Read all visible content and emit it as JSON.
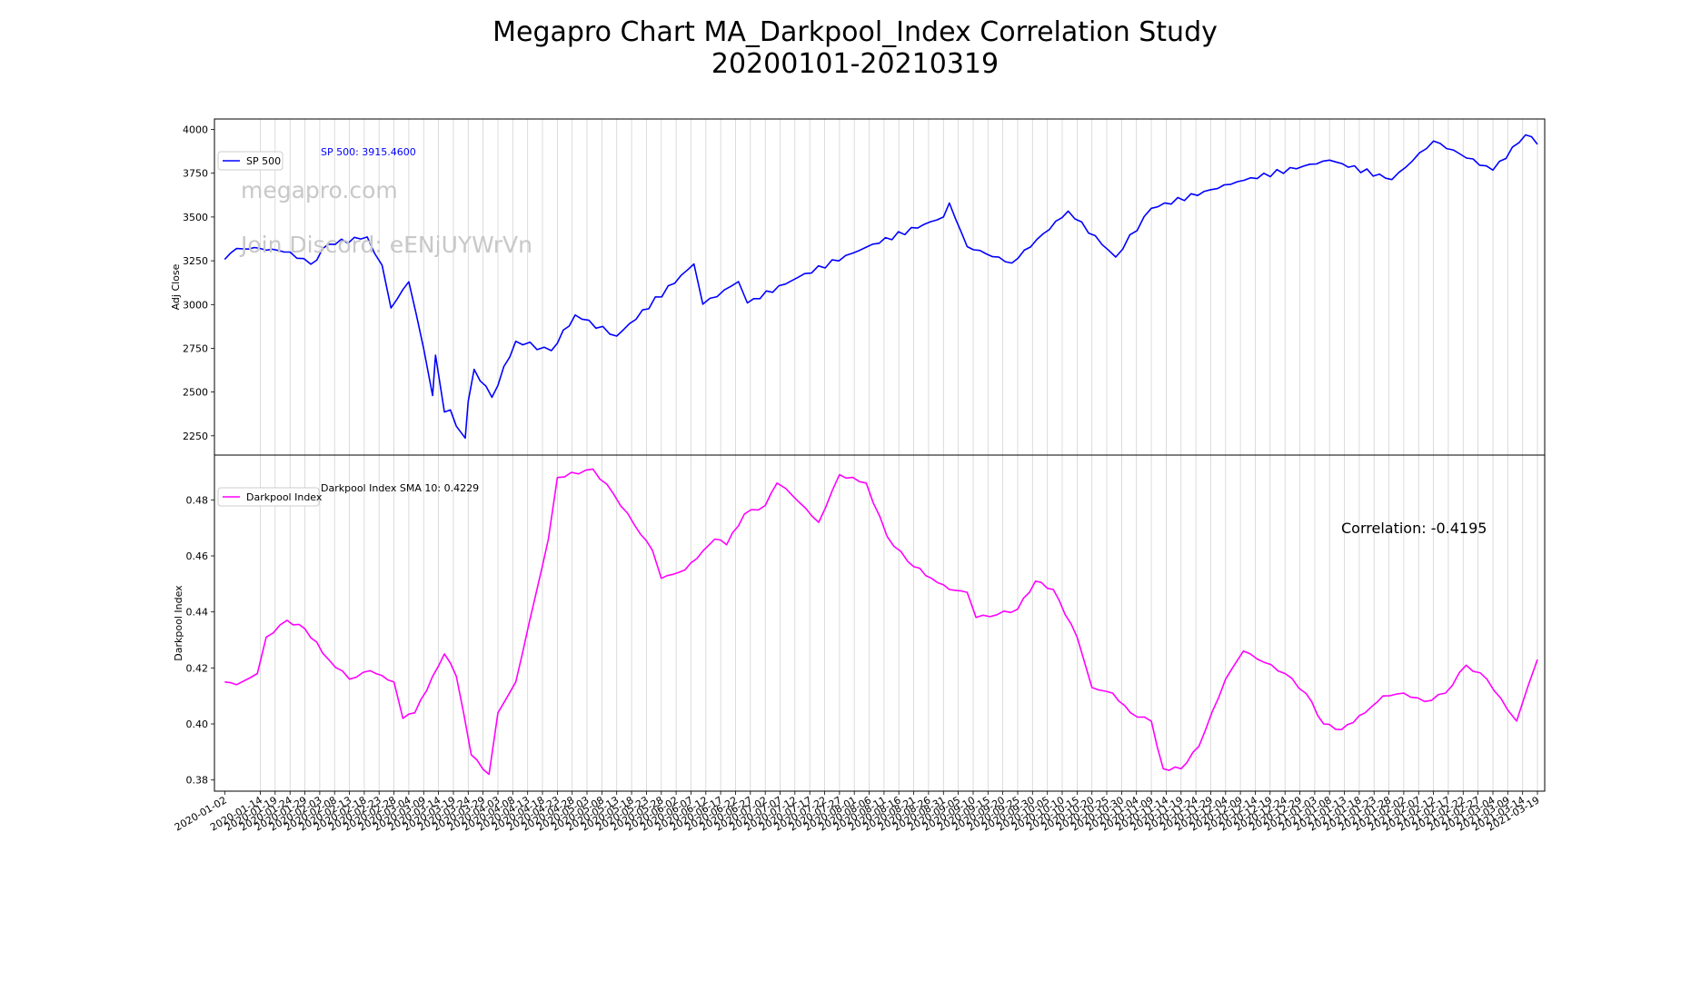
{
  "title_line1": "Megapro Chart MA_Darkpool_Index Correlation Study",
  "title_line2": "20200101-20210319",
  "watermark1": "megapro.com",
  "watermark2": "Join Discord: eENjUYWrVn",
  "colors": {
    "sp500": "#0000ff",
    "darkpool": "#ff00ff",
    "watermark": "#c8c8c8",
    "grid": "#d3d3d3"
  },
  "chart_data": [
    {
      "type": "line",
      "ylabel": "Adj Close",
      "ylim": [
        2140,
        4060
      ],
      "yticks": [
        2250,
        2500,
        2750,
        3000,
        3250,
        3500,
        3750,
        4000
      ],
      "yticklabels": [
        "2250",
        "2500",
        "2750",
        "3000",
        "3250",
        "3500",
        "3750",
        "4000"
      ],
      "legend": "upper-left",
      "annotation": "SP 500: 3915.4600",
      "series": [
        {
          "name": "SP 500",
          "color": "#0000ff",
          "points": [
            [
              "2020-01-02",
              3258
            ],
            [
              "2020-01-06",
              3320
            ],
            [
              "2020-01-14",
              3320
            ],
            [
              "2020-01-24",
              3300
            ],
            [
              "2020-01-31",
              3230
            ],
            [
              "2020-02-06",
              3345
            ],
            [
              "2020-02-19",
              3386
            ],
            [
              "2020-02-24",
              3225
            ],
            [
              "2020-02-27",
              2980
            ],
            [
              "2020-03-04",
              3130
            ],
            [
              "2020-03-09",
              2747
            ],
            [
              "2020-03-12",
              2480
            ],
            [
              "2020-03-13",
              2711
            ],
            [
              "2020-03-16",
              2386
            ],
            [
              "2020-03-18",
              2398
            ],
            [
              "2020-03-20",
              2305
            ],
            [
              "2020-03-23",
              2237
            ],
            [
              "2020-03-24",
              2447
            ],
            [
              "2020-03-26",
              2630
            ],
            [
              "2020-04-01",
              2470
            ],
            [
              "2020-04-09",
              2790
            ],
            [
              "2020-04-21",
              2737
            ],
            [
              "2020-04-29",
              2940
            ],
            [
              "2020-05-13",
              2820
            ],
            [
              "2020-06-08",
              3232
            ],
            [
              "2020-06-11",
              3002
            ],
            [
              "2020-06-23",
              3131
            ],
            [
              "2020-06-26",
              3009
            ],
            [
              "2020-07-13",
              3155
            ],
            [
              "2020-08-05",
              3328
            ],
            [
              "2020-08-31",
              3500
            ],
            [
              "2020-09-02",
              3580
            ],
            [
              "2020-09-08",
              3331
            ],
            [
              "2020-09-23",
              3237
            ],
            [
              "2020-10-12",
              3534
            ],
            [
              "2020-10-28",
              3271
            ],
            [
              "2020-11-09",
              3550
            ],
            [
              "2020-12-08",
              3702
            ],
            [
              "2021-01-08",
              3825
            ],
            [
              "2021-01-29",
              3714
            ],
            [
              "2021-02-12",
              3934
            ],
            [
              "2021-03-04",
              3768
            ],
            [
              "2021-03-15",
              3969
            ],
            [
              "2021-03-19",
              3915
            ]
          ]
        }
      ]
    },
    {
      "type": "line",
      "ylabel": "Darkpool Index",
      "ylim": [
        0.376,
        0.496
      ],
      "yticks": [
        0.38,
        0.4,
        0.42,
        0.44,
        0.46,
        0.48
      ],
      "yticklabels": [
        "0.38",
        "0.40",
        "0.42",
        "0.44",
        "0.46",
        "0.48"
      ],
      "legend": "upper-left",
      "annotation": "Darkpool Index SMA 10: 0.4229",
      "correlation_label": "Correlation: -0.4195",
      "series": [
        {
          "name": "Darkpool Index",
          "color": "#ff00ff",
          "points": [
            [
              "2020-01-02",
              0.415
            ],
            [
              "2020-01-06",
              0.414
            ],
            [
              "2020-01-13",
              0.418
            ],
            [
              "2020-01-16",
              0.431
            ],
            [
              "2020-01-23",
              0.437
            ],
            [
              "2020-01-29",
              0.434
            ],
            [
              "2020-02-06",
              0.423
            ],
            [
              "2020-02-13",
              0.416
            ],
            [
              "2020-02-20",
              0.419
            ],
            [
              "2020-02-28",
              0.415
            ],
            [
              "2020-03-02",
              0.402
            ],
            [
              "2020-03-06",
              0.404
            ],
            [
              "2020-03-16",
              0.425
            ],
            [
              "2020-03-20",
              0.417
            ],
            [
              "2020-03-25",
              0.389
            ],
            [
              "2020-03-31",
              0.382
            ],
            [
              "2020-04-03",
              0.404
            ],
            [
              "2020-04-09",
              0.415
            ],
            [
              "2020-04-20",
              0.466
            ],
            [
              "2020-04-23",
              0.488
            ],
            [
              "2020-05-05",
              0.491
            ],
            [
              "2020-05-12",
              0.482
            ],
            [
              "2020-05-19",
              0.471
            ],
            [
              "2020-05-25",
              0.462
            ],
            [
              "2020-05-28",
              0.452
            ],
            [
              "2020-06-05",
              0.455
            ],
            [
              "2020-06-15",
              0.466
            ],
            [
              "2020-06-19",
              0.464
            ],
            [
              "2020-06-25",
              0.475
            ],
            [
              "2020-07-02",
              0.478
            ],
            [
              "2020-07-06",
              0.486
            ],
            [
              "2020-07-09",
              0.484
            ],
            [
              "2020-07-20",
              0.472
            ],
            [
              "2020-07-27",
              0.489
            ],
            [
              "2020-08-05",
              0.486
            ],
            [
              "2020-08-12",
              0.467
            ],
            [
              "2020-08-19",
              0.458
            ],
            [
              "2020-08-27",
              0.452
            ],
            [
              "2020-09-02",
              0.448
            ],
            [
              "2020-09-08",
              0.447
            ],
            [
              "2020-09-11",
              0.438
            ],
            [
              "2020-09-18",
              0.439
            ],
            [
              "2020-09-25",
              0.441
            ],
            [
              "2020-10-01",
              0.451
            ],
            [
              "2020-10-07",
              0.448
            ],
            [
              "2020-10-15",
              0.431
            ],
            [
              "2020-10-20",
              0.413
            ],
            [
              "2020-10-27",
              0.411
            ],
            [
              "2020-11-02",
              0.404
            ],
            [
              "2020-11-09",
              0.401
            ],
            [
              "2020-11-13",
              0.384
            ],
            [
              "2020-11-19",
              0.384
            ],
            [
              "2020-11-25",
              0.392
            ],
            [
              "2020-12-04",
              0.416
            ],
            [
              "2020-12-10",
              0.426
            ],
            [
              "2020-12-17",
              0.422
            ],
            [
              "2020-12-24",
              0.418
            ],
            [
              "2020-12-31",
              0.411
            ],
            [
              "2021-01-06",
              0.4
            ],
            [
              "2021-01-12",
              0.398
            ],
            [
              "2021-01-20",
              0.404
            ],
            [
              "2021-01-26",
              0.41
            ],
            [
              "2021-02-02",
              0.411
            ],
            [
              "2021-02-09",
              0.408
            ],
            [
              "2021-02-16",
              0.411
            ],
            [
              "2021-02-23",
              0.421
            ],
            [
              "2021-03-02",
              0.416
            ],
            [
              "2021-03-09",
              0.405
            ],
            [
              "2021-03-12",
              0.401
            ],
            [
              "2021-03-16",
              0.414
            ],
            [
              "2021-03-19",
              0.423
            ]
          ]
        }
      ]
    }
  ]
}
